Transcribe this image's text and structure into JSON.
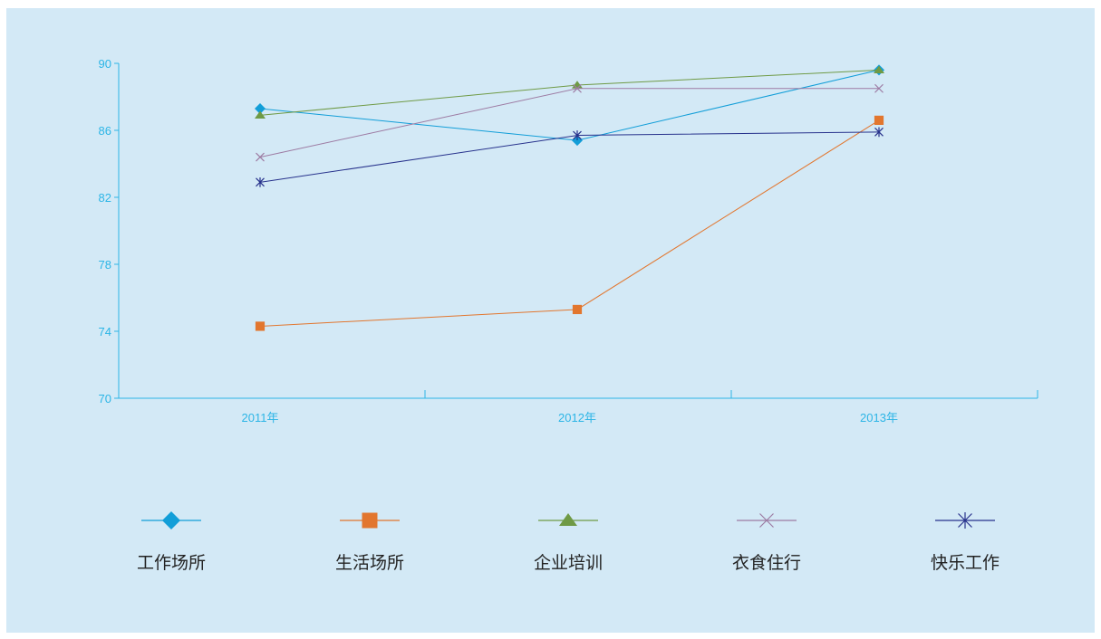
{
  "chart_data": {
    "type": "line",
    "categories": [
      "2011年",
      "2012年",
      "2013年"
    ],
    "ylim": [
      70,
      90
    ],
    "yticks": [
      70,
      74,
      78,
      82,
      86,
      90
    ],
    "grid": false,
    "legend_position": "bottom",
    "series": [
      {
        "name": "工作场所",
        "values": [
          87.3,
          85.4,
          89.6
        ],
        "color": "#129ed8",
        "marker": "diamond"
      },
      {
        "name": "生活场所",
        "values": [
          74.3,
          75.3,
          86.6
        ],
        "color": "#e2762e",
        "marker": "square"
      },
      {
        "name": "企业培训",
        "values": [
          86.9,
          88.7,
          89.6
        ],
        "color": "#6f9a45",
        "marker": "triangle"
      },
      {
        "name": "衣食住行",
        "values": [
          84.4,
          88.5,
          88.5
        ],
        "color": "#9d7ba3",
        "marker": "x"
      },
      {
        "name": "快乐工作",
        "values": [
          82.9,
          85.7,
          85.9
        ],
        "color": "#27328c",
        "marker": "star"
      }
    ],
    "axis_color": "#2cb5e6"
  }
}
